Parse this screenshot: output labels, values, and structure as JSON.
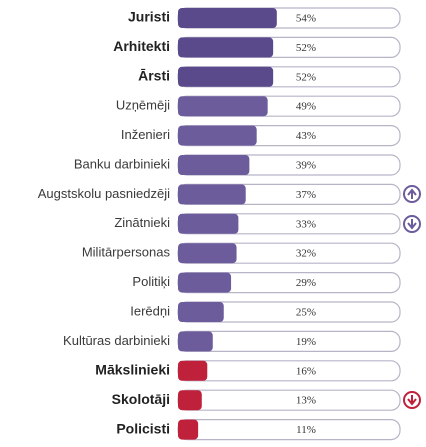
{
  "chart_data": {
    "type": "bar",
    "categories": [
      "Juristi",
      "Arhitekti",
      "Ārsti",
      "Uzņēmēji",
      "Inženieri",
      "Banku darbinieki",
      "Augstskolu pasniedzēji",
      "Zinātnieki",
      "Militārpersonas",
      "Politiķi",
      "Ierēdņi",
      "Kultūras darbinieki",
      "Mākslinieki",
      "Skolotāji",
      "Policisti"
    ],
    "values": [
      54,
      52,
      52,
      49,
      43,
      39,
      37,
      33,
      32,
      29,
      25,
      19,
      16,
      13,
      11
    ],
    "value_labels": [
      "54%",
      "52%",
      "52%",
      "49%",
      "43%",
      "39%",
      "37%",
      "33%",
      "32%",
      "29%",
      "25%",
      "19%",
      "16%",
      "13%",
      "11%"
    ],
    "colors": [
      "#5a4a8c",
      "#5a4a8c",
      "#5a4a8c",
      "#6c5c9c",
      "#6c5c9c",
      "#6c5c9c",
      "#6c5c9c",
      "#6c5c9c",
      "#6c5c9c",
      "#6c5c9c",
      "#6c5c9c",
      "#6c5c9c",
      "#c0213a",
      "#c0213a",
      "#c0213a"
    ]
  }
}
